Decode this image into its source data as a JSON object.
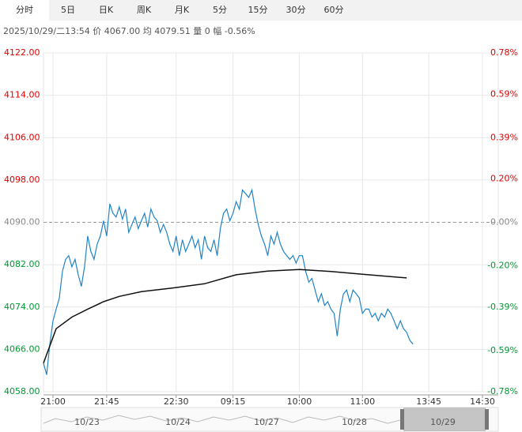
{
  "tabs": [
    "分时",
    "5日",
    "日K",
    "周K",
    "月K",
    "5分",
    "15分",
    "30分",
    "60分"
  ],
  "selected_tab": 0,
  "header": {
    "info": "2025/10/29/二13:54 价 4067.00 均 4079.51 量 0 幅 -0.56%"
  },
  "chart_data": {
    "type": "line",
    "up_color": "#e00000",
    "down_color": "#009933",
    "flat_color": "#888888",
    "xlim": [
      0,
      144
    ],
    "xticks": [
      {
        "value": 3,
        "label": "21:00"
      },
      {
        "value": 20,
        "label": "21:45"
      },
      {
        "value": 42,
        "label": "22:30"
      },
      {
        "value": 60,
        "label": "09:15"
      },
      {
        "value": 81,
        "label": "10:00"
      },
      {
        "value": 101,
        "label": "11:00"
      },
      {
        "value": 122,
        "label": "13:45"
      },
      {
        "value": 139,
        "label": "14:30"
      }
    ],
    "ylim": [
      4058,
      4122
    ],
    "yticks": [
      {
        "value": 4122,
        "label": "4122.00"
      },
      {
        "value": 4114,
        "label": "4114.00"
      },
      {
        "value": 4106,
        "label": "4106.00"
      },
      {
        "value": 4098,
        "label": "4098.00"
      },
      {
        "value": 4090,
        "label": "4090.00"
      },
      {
        "value": 4082,
        "label": "4082.00"
      },
      {
        "value": 4074,
        "label": "4074.00"
      },
      {
        "value": 4066,
        "label": "4066.00"
      },
      {
        "value": 4058,
        "label": "4058.00"
      }
    ],
    "y2lim": [
      -0.78,
      0.78
    ],
    "y2ticks": [
      {
        "value": 0.78,
        "label": "0.78%"
      },
      {
        "value": 0.59,
        "label": "0.59%"
      },
      {
        "value": 0.39,
        "label": "0.39%"
      },
      {
        "value": 0.2,
        "label": "0.20%"
      },
      {
        "value": 0,
        "label": "0.00%"
      },
      {
        "value": -0.2,
        "label": "-0.20%"
      },
      {
        "value": -0.39,
        "label": "-0.39%"
      },
      {
        "value": -0.59,
        "label": "-0.59%"
      },
      {
        "value": -0.78,
        "label": "-0.78%"
      }
    ],
    "reference": 4090,
    "grid": true,
    "series": [
      {
        "color": "#1f84c6",
        "values": [
          4063.4,
          4061.2,
          4067.0,
          4071.4,
          4073.6,
          4075.7,
          4080.8,
          4083.0,
          4083.7,
          4081.6,
          4083.0,
          4080.1,
          4077.9,
          4081.6,
          4087.4,
          4084.5,
          4083.0,
          4085.9,
          4087.4,
          4090.3,
          4087.4,
          4093.5,
          4091.7,
          4091.0,
          4092.9,
          4090.6,
          4092.5,
          4088.1,
          4089.6,
          4091.0,
          4088.8,
          4090.3,
          4091.7,
          4089.1,
          4092.5,
          4091.0,
          4090.3,
          4088.1,
          4089.6,
          4088.1,
          4085.9,
          4084.5,
          4087.4,
          4083.7,
          4086.7,
          4084.5,
          4085.9,
          4087.4,
          4085.2,
          4086.7,
          4083.0,
          4087.4,
          4085.2,
          4084.5,
          4086.7,
          4083.7,
          4088.8,
          4091.7,
          4092.5,
          4090.3,
          4091.7,
          4093.9,
          4092.5,
          4096.1,
          4095.4,
          4094.7,
          4096.1,
          4092.5,
          4089.6,
          4087.4,
          4085.9,
          4083.7,
          4087.4,
          4085.9,
          4088.1,
          4085.9,
          4084.5,
          4083.7,
          4083.0,
          4083.7,
          4082.3,
          4083.7,
          4083.7,
          4080.8,
          4078.7,
          4079.4,
          4077.2,
          4075.0,
          4076.5,
          4074.3,
          4075.0,
          4073.6,
          4072.8,
          4068.5,
          4073.6,
          4076.5,
          4077.2,
          4075.0,
          4077.2,
          4076.5,
          4075.7,
          4072.8,
          4073.6,
          4073.6,
          4072.1,
          4072.8,
          4071.4,
          4072.8,
          4072.1,
          4073.6,
          4072.8,
          4071.4,
          4069.9,
          4071.4,
          4069.9,
          4069.2,
          4067.7,
          4067.0
        ]
      },
      {
        "color": "#111111",
        "x": [
          0,
          4,
          9,
          14,
          19,
          24,
          31,
          41,
          51,
          61,
          71,
          81,
          91,
          101,
          115
        ],
        "values": [
          4063.4,
          4069.9,
          4072.1,
          4073.6,
          4075.0,
          4076.0,
          4076.9,
          4077.6,
          4078.4,
          4080.1,
          4080.8,
          4081.1,
          4080.7,
          4080.2,
          4079.5
        ]
      }
    ]
  },
  "navigator": {
    "labels": [
      "10/23",
      "10/24",
      "10/27",
      "10/28",
      "10/29"
    ]
  }
}
